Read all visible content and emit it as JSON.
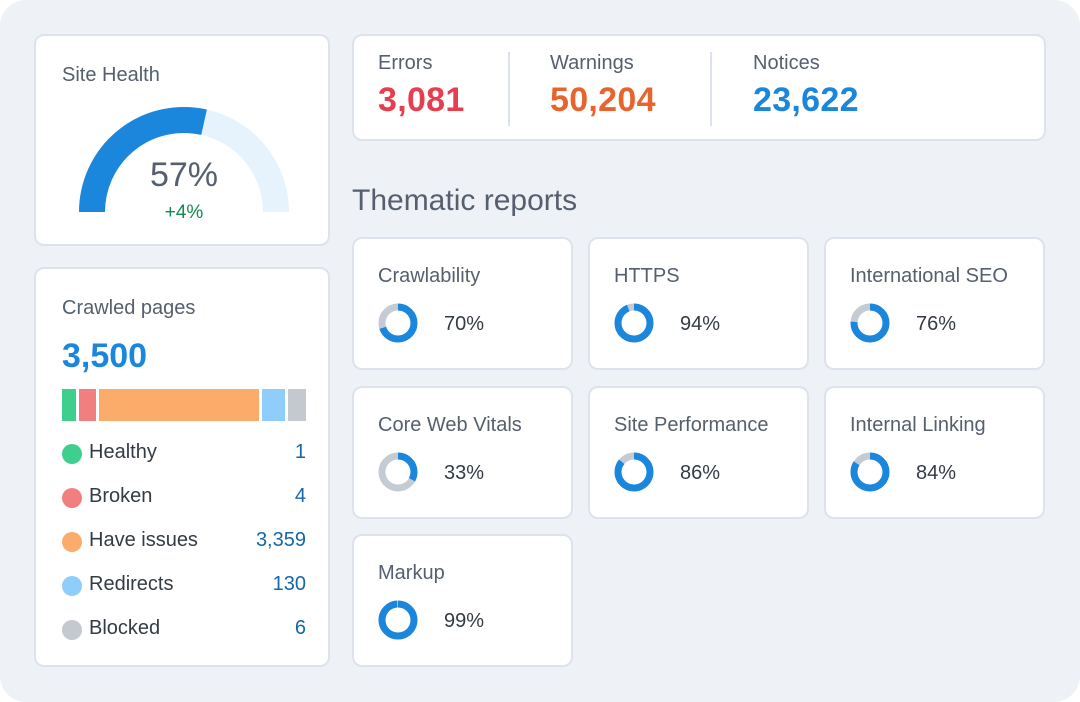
{
  "site_health": {
    "title": "Site Health",
    "value_label": "57%",
    "value": 57,
    "delta": "+4%",
    "colors": {
      "filled": "#1a87dd",
      "track": "#e6f3fc",
      "delta": "#0f8a53"
    }
  },
  "issues": {
    "errors": {
      "label": "Errors",
      "value": "3,081",
      "color": "#e63d4f"
    },
    "warnings": {
      "label": "Warnings",
      "value": "50,204",
      "color": "#e8642c"
    },
    "notices": {
      "label": "Notices",
      "value": "23,622",
      "color": "#1a87dd"
    }
  },
  "thematic": {
    "title": "Thematic reports",
    "reports": [
      {
        "name": "Crawlability",
        "percent": 70,
        "label": "70%"
      },
      {
        "name": "HTTPS",
        "percent": 94,
        "label": "94%"
      },
      {
        "name": "International SEO",
        "percent": 76,
        "label": "76%"
      },
      {
        "name": "Core Web Vitals",
        "percent": 33,
        "label": "33%"
      },
      {
        "name": "Site Performance",
        "percent": 86,
        "label": "86%"
      },
      {
        "name": "Internal Linking",
        "percent": 84,
        "label": "84%"
      },
      {
        "name": "Markup",
        "percent": 99,
        "label": "99%"
      }
    ],
    "colors": {
      "filled": "#1a87dd",
      "remainder": "#c5cbd3"
    }
  },
  "crawled_pages": {
    "title": "Crawled pages",
    "total": "3,500",
    "categories": [
      {
        "name": "Healthy",
        "value": "1",
        "color": "#3ecf8e"
      },
      {
        "name": "Broken",
        "value": "4",
        "color": "#f27f80"
      },
      {
        "name": "Have issues",
        "value": "3,359",
        "color": "#fbab6a"
      },
      {
        "name": "Redirects",
        "value": "130",
        "color": "#8fcdfb"
      },
      {
        "name": "Blocked",
        "value": "6",
        "color": "#c4c8cf"
      }
    ]
  }
}
